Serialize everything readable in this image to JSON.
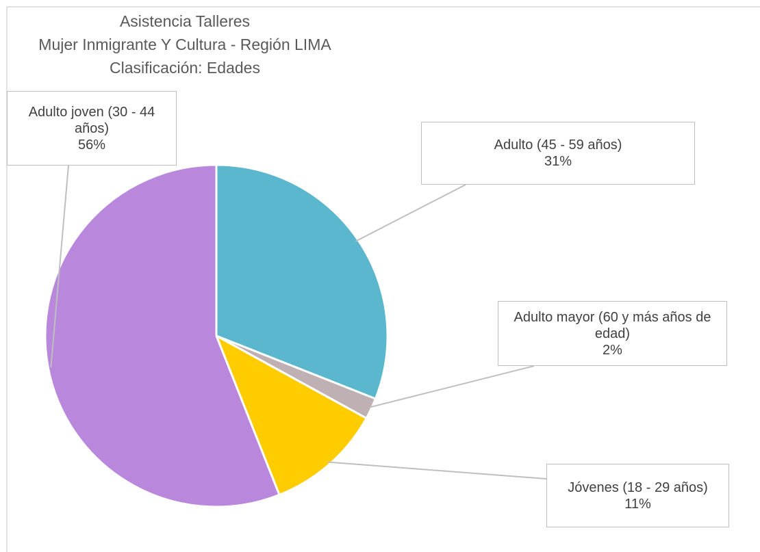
{
  "chart_data": {
    "type": "pie",
    "title": [
      "Asistencia Talleres",
      "Mujer Inmigrante Y Cultura  - Región LIMA",
      "Clasificación: Edades"
    ],
    "categories": [
      "Adulto (45 - 59 años)",
      "Adulto mayor (60 y más años de edad)",
      "Jóvenes (18 - 29 años)",
      "Adulto joven (30 - 44 años)"
    ],
    "values": [
      31,
      2,
      11,
      56
    ],
    "value_labels": [
      "31%",
      "2%",
      "11%",
      "56%"
    ],
    "colors": [
      "#5bb7cd",
      "#bfb0b3",
      "#ffcc00",
      "#b988dc"
    ]
  }
}
